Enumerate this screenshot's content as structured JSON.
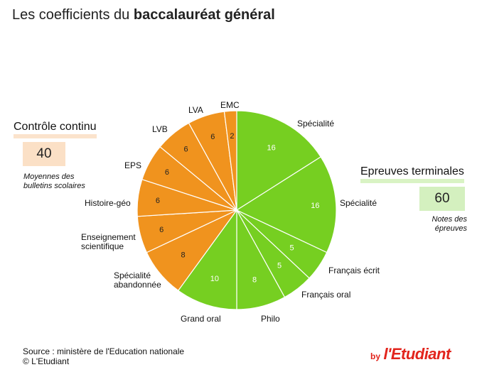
{
  "header": {
    "title_prefix": "Les coefficients du ",
    "title_bold": "baccalauréat général"
  },
  "groups": {
    "controle_continu": {
      "title": "Contrôle continu",
      "total": "40",
      "note": "Moyennes des bulletins scolaires"
    },
    "epreuves_terminales": {
      "title": "Epreuves terminales",
      "total": "60",
      "note": "Notes des épreuves"
    }
  },
  "footer": {
    "source": "Source : ministère de l'Education nationale",
    "copyright": "© L'Etudiant",
    "logo_by": "by",
    "logo_brand": "l'Etudiant"
  },
  "colors": {
    "controle_continu": "#f0931e",
    "epreuves_terminales": "#76cf21",
    "logo": "#e2241c"
  },
  "chart_data": {
    "type": "pie",
    "start": "12 o'clock",
    "direction": "clockwise",
    "slices": [
      {
        "label": "Spécialité",
        "value": 16,
        "group": "epreuves_terminales"
      },
      {
        "label": "Spécialité",
        "value": 16,
        "group": "epreuves_terminales"
      },
      {
        "label": "Français écrit",
        "value": 5,
        "group": "epreuves_terminales"
      },
      {
        "label": "Français oral",
        "value": 5,
        "group": "epreuves_terminales"
      },
      {
        "label": "Philo",
        "value": 8,
        "group": "epreuves_terminales"
      },
      {
        "label": "Grand oral",
        "value": 10,
        "group": "epreuves_terminales"
      },
      {
        "label": "Spécialité abandonnée",
        "value": 8,
        "group": "controle_continu"
      },
      {
        "label": "Enseignement scientifique",
        "value": 6,
        "group": "controle_continu"
      },
      {
        "label": "Histoire-géo",
        "value": 6,
        "group": "controle_continu"
      },
      {
        "label": "EPS",
        "value": 6,
        "group": "controle_continu"
      },
      {
        "label": "LVB",
        "value": 6,
        "group": "controle_continu"
      },
      {
        "label": "LVA",
        "value": 6,
        "group": "controle_continu"
      },
      {
        "label": "EMC",
        "value": 2,
        "group": "controle_continu"
      }
    ]
  }
}
